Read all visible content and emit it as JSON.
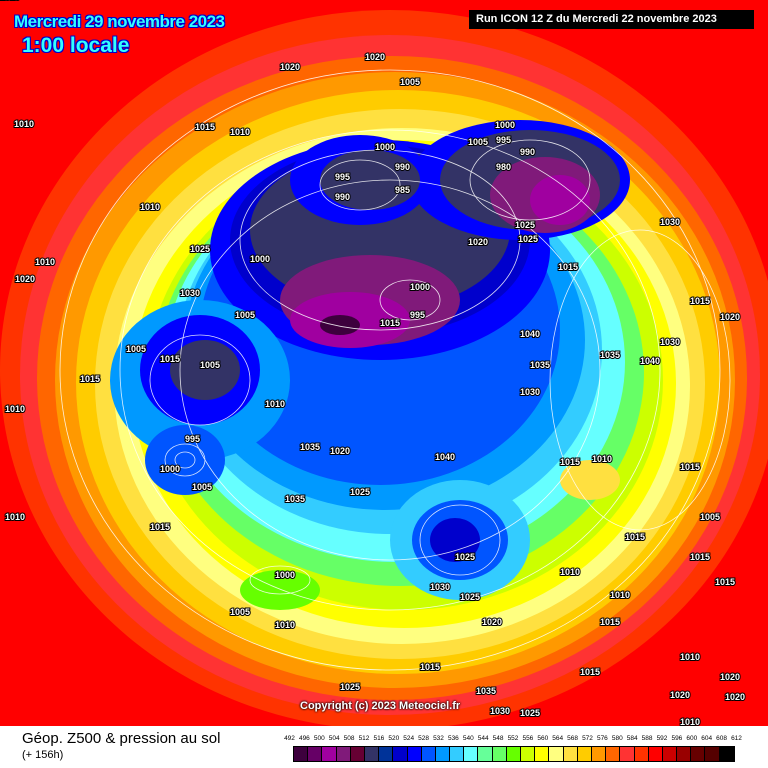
{
  "header": {
    "date": "Mercredi 29 novembre 2023",
    "local_time": "1:00 locale",
    "run_info": "Run ICON 12 Z du Mercredi 22 novembre 2023"
  },
  "copyright": "Copyright (c) 2023 Meteociel.fr",
  "footer": {
    "title": "Géop. Z500 & pression au sol",
    "lead_time": "(+ 156h)"
  },
  "legend": {
    "values": [
      "492",
      "496",
      "500",
      "504",
      "508",
      "512",
      "516",
      "520",
      "524",
      "528",
      "532",
      "536",
      "540",
      "544",
      "548",
      "552",
      "556",
      "560",
      "564",
      "568",
      "572",
      "576",
      "580",
      "584",
      "588",
      "592",
      "596",
      "600",
      "604",
      "608",
      "612"
    ],
    "colors": [
      "#3d003d",
      "#660066",
      "#a000a0",
      "#801a7a",
      "#660033",
      "#333366",
      "#003399",
      "#0000cc",
      "#0000ff",
      "#0055ff",
      "#0099ff",
      "#33ccff",
      "#66ffff",
      "#66ff99",
      "#66ff66",
      "#66ff00",
      "#ccff00",
      "#ffff00",
      "#ffff80",
      "#ffe040",
      "#ffcc00",
      "#ff9900",
      "#ff6600",
      "#ff3333",
      "#ff3300",
      "#ff0000",
      "#cc0000",
      "#990000",
      "#660000",
      "#550000",
      "#000000"
    ]
  },
  "pressure_labels": [
    "1010",
    "1020",
    "1020",
    "1005",
    "1015",
    "1010",
    "1010",
    "1000",
    "990",
    "995",
    "985",
    "990",
    "1005",
    "995",
    "990",
    "980",
    "1000",
    "1020",
    "1025",
    "1030",
    "1015",
    "1020",
    "1010",
    "1025",
    "1030",
    "1000",
    "995",
    "1005",
    "1000",
    "1025",
    "1015",
    "1005",
    "1015",
    "1010",
    "1010",
    "1005",
    "1015",
    "1030",
    "1035",
    "1040",
    "1035",
    "1030",
    "1015",
    "995",
    "1000",
    "1005",
    "1035",
    "1020",
    "1040",
    "1010",
    "1025",
    "1035",
    "1040",
    "1015",
    "1020",
    "1025",
    "1030",
    "1025",
    "1020",
    "1005",
    "1010",
    "1015",
    "1000",
    "1005",
    "1010",
    "1015",
    "1025",
    "1035",
    "1030",
    "1025",
    "1020",
    "1015",
    "1010",
    "1015",
    "1020",
    "1010",
    "1015",
    "1015",
    "1010",
    "1015",
    "1015",
    "1020",
    "1010",
    "1010"
  ]
}
